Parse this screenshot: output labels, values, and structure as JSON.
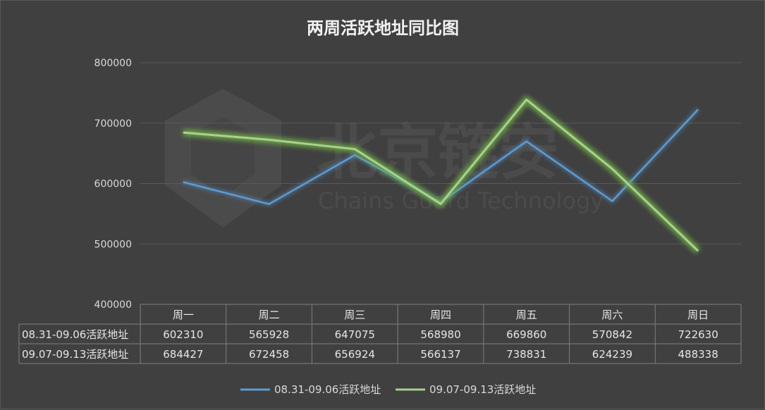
{
  "watermark": {
    "cn": "北京链安",
    "en": "Chains Guard Technology"
  },
  "colors": {
    "background": "#404040",
    "series1": "#5b9bd5",
    "series2": "#a9d18e",
    "series2_glow": "#70ad47",
    "gridline": "#595959",
    "table_border": "#7f7f7f"
  },
  "chart_data": {
    "type": "line",
    "title": "两周活跃地址同比图",
    "categories": [
      "周一",
      "周二",
      "周三",
      "周四",
      "周五",
      "周六",
      "周日"
    ],
    "series": [
      {
        "name": "08.31-09.06活跃地址",
        "values": [
          602310,
          565928,
          647075,
          568980,
          669860,
          570842,
          722630
        ]
      },
      {
        "name": "09.07-09.13活跃地址",
        "values": [
          684427,
          672458,
          656924,
          566137,
          738831,
          624239,
          488338
        ]
      }
    ],
    "ylim": [
      400000,
      800000
    ],
    "yticks": [
      "800000",
      "700000",
      "600000",
      "500000",
      "400000"
    ],
    "grid": true,
    "data_table": true,
    "legend_position": "bottom"
  }
}
